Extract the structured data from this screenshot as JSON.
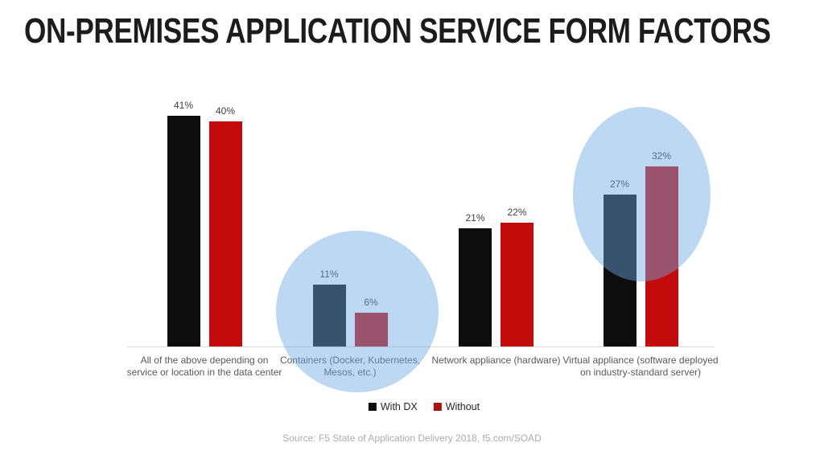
{
  "title": "ON-PREMISES APPLICATION SERVICE FORM FACTORS",
  "chart_data": {
    "type": "bar",
    "title": "ON-PREMISES APPLICATION SERVICE FORM FACTORS",
    "categories": [
      "All of the above depending on service or location in the data center",
      "Containers (Docker, Kubernetes, Mesos, etc.)",
      "Network appliance (hardware)",
      "Virtual appliance (software deployed on industry-standard server)"
    ],
    "series": [
      {
        "name": "With DX",
        "color": "#0d0d0d",
        "values": [
          41,
          11,
          21,
          27
        ]
      },
      {
        "name": "Without",
        "color": "#c40b0b",
        "values": [
          40,
          6,
          22,
          32
        ]
      }
    ],
    "value_suffix": "%",
    "ylim": [
      0,
      45
    ],
    "y_axis_visible": false,
    "grid": false,
    "legend_position": "bottom",
    "data_labels": true,
    "highlighted_category_indices": [
      1,
      3
    ],
    "highlight_overlay_rgba": "rgba(106,168,226,0.45)",
    "highlight_color_on_white": "#bdd5ec"
  },
  "legend": {
    "items": [
      {
        "label": "With DX",
        "color": "#0d0d0d"
      },
      {
        "label": "Without",
        "color": "#a81211"
      }
    ]
  },
  "footer": {
    "source": "Source: F5 State of Application Delivery 2018, f5.com/SOAD"
  }
}
